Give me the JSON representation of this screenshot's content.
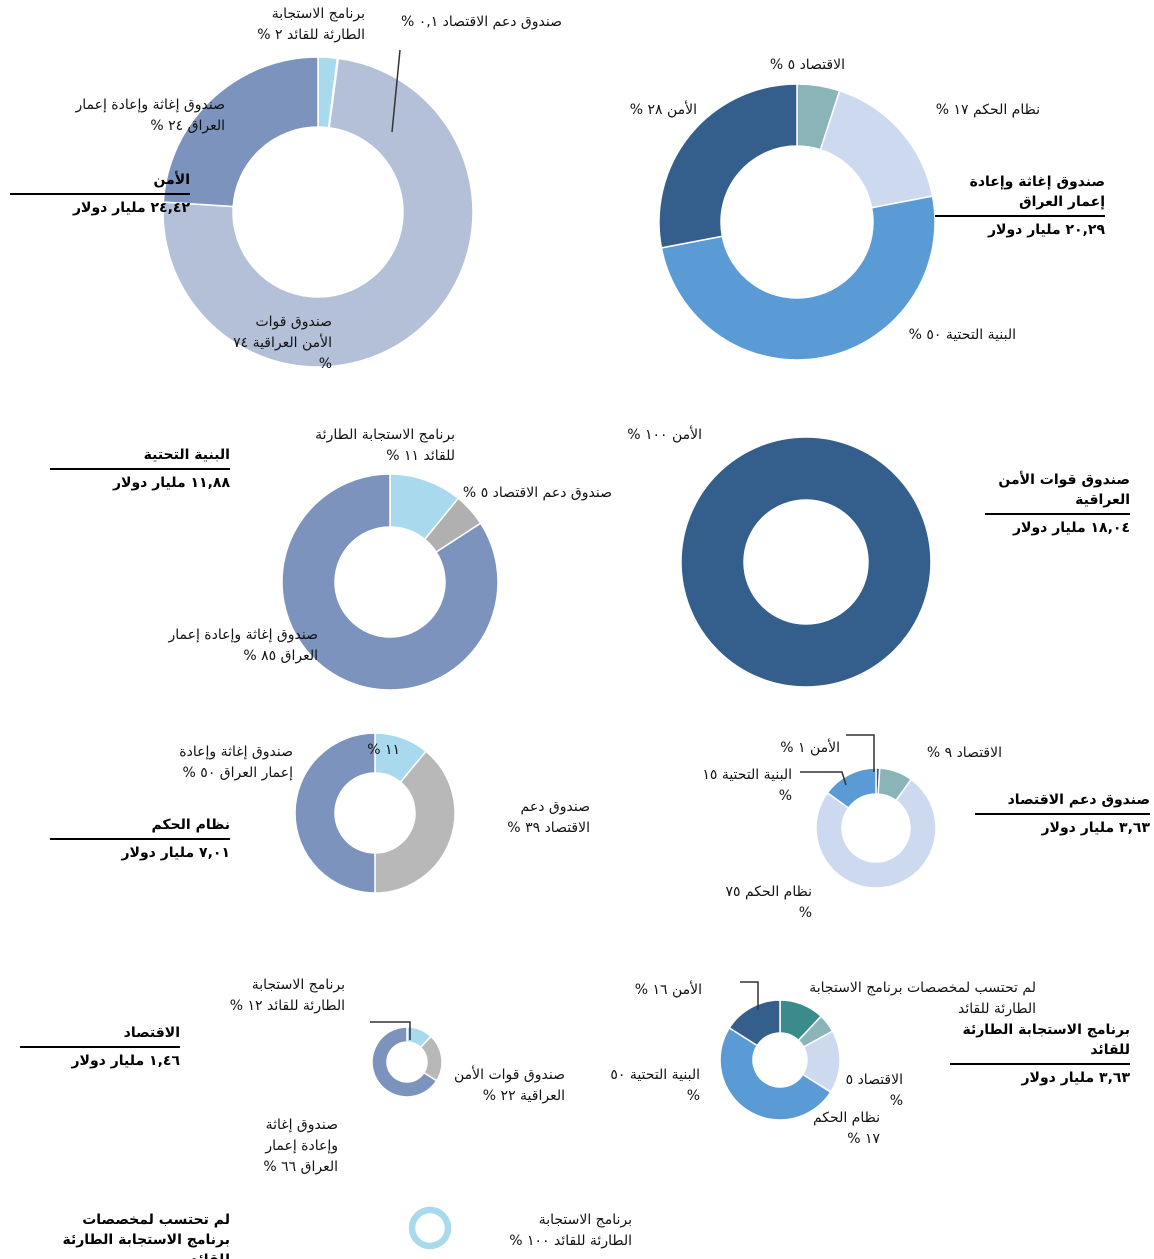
{
  "chart_data": [
    {
      "type": "pie",
      "title": "الأمن",
      "subtitle": "٢٤,٤٢ مليار دولار",
      "labels": [
        "برنامج الاستجابة الطارئة للقائد",
        "صندوق دعم الاقتصاد",
        "صندوق قوات الأمن العراقية",
        "صندوق إغاثة وإعادة إعمار العراق"
      ],
      "values": [
        2,
        0.1,
        74,
        24
      ],
      "value_labels": [
        "٢ %",
        "٠,١ %",
        "٧٤ %",
        "٢٤ %"
      ],
      "colors": [
        "#a9d9ec",
        "#e8eef5",
        "#b4c0d8",
        "#7b93bd"
      ]
    },
    {
      "type": "pie",
      "title": "صندوق إغاثة وإعادة إعمار العراق",
      "subtitle": "٢٠,٢٩ مليار دولار",
      "labels": [
        "الاقتصاد",
        "نظام الحكم",
        "البنية التحتية",
        "الأمن"
      ],
      "values": [
        5,
        17,
        50,
        28
      ],
      "value_labels": [
        "٥ %",
        "١٧ %",
        "٥٠ %",
        "٢٨ %"
      ],
      "colors": [
        "#8ab4b8",
        "#ccd9ee",
        "#5b9bd5",
        "#345e8c"
      ]
    },
    {
      "type": "pie",
      "title": "البنية التحتية",
      "subtitle": "١١,٨٨ مليار دولار",
      "labels": [
        "برنامج الاستجابة الطارئة للقائد",
        "صندوق دعم الاقتصاد",
        "صندوق إغاثة وإعادة إعمار العراق"
      ],
      "values": [
        11,
        5,
        85
      ],
      "value_labels": [
        "١١ %",
        "٥ %",
        "٨٥ %"
      ],
      "colors": [
        "#a9d9ec",
        "#b0b0b0",
        "#7b93bd"
      ]
    },
    {
      "type": "pie",
      "title": "صندوق قوات الأمن العراقية",
      "subtitle": "١٨,٠٤ مليار دولار",
      "labels": [
        "الأمن"
      ],
      "values": [
        100
      ],
      "value_labels": [
        "١٠٠ %"
      ],
      "colors": [
        "#345e8c"
      ]
    },
    {
      "type": "pie",
      "title": "نظام الحكم",
      "subtitle": "٧,٠١ مليار دولار",
      "labels": [
        null,
        "صندوق دعم الاقتصاد",
        "صندوق إغاثة وإعادة إعمار العراق"
      ],
      "values": [
        11,
        39,
        50
      ],
      "value_labels": [
        "١١ %",
        "٣٩ %",
        "٥٠ %"
      ],
      "colors": [
        "#a9d9ec",
        "#b8b8b8",
        "#7b93bd"
      ]
    },
    {
      "type": "pie",
      "title": "صندوق دعم الاقتصاد",
      "subtitle": "٣,٦٣ مليار دولار",
      "labels": [
        "الأمن",
        "الاقتصاد",
        "نظام الحكم",
        "البنية التحتية"
      ],
      "values": [
        1,
        9,
        75,
        15
      ],
      "value_labels": [
        "١ %",
        "٩ %",
        "٧٥ %",
        "١٥ %"
      ],
      "colors": [
        "#345e8c",
        "#8ab4b8",
        "#ccd9ee",
        "#5b9bd5"
      ]
    },
    {
      "type": "pie",
      "title": "الاقتصاد",
      "subtitle": "١,٤٦ مليار دولار",
      "labels": [
        "برنامج الاستجابة الطارئة للقائد",
        "صندوق قوات الأمن العراقية",
        "صندوق إغاثة وإعادة إعمار العراق"
      ],
      "values": [
        12,
        22,
        66
      ],
      "value_labels": [
        "١٢ %",
        "٢٢ %",
        "٦٦ %"
      ],
      "colors": [
        "#a9d9ec",
        "#b8b8b8",
        "#7b93bd"
      ]
    },
    {
      "type": "pie",
      "title": "برنامج الاستجابة الطارئة للقائد",
      "subtitle": "٣,٦٣ مليار دولار",
      "labels": [
        "لم تحتسب لمخصصات برنامج الاستجابة الطارئة للقائد",
        "الاقتصاد",
        "نظام الحكم",
        "البنية التحتية",
        "الأمن"
      ],
      "values": [
        12,
        5,
        17,
        50,
        16
      ],
      "value_labels": [
        null,
        "٥ %",
        "١٧ %",
        "٥٠ %",
        "١٦ %"
      ],
      "colors": [
        "#3a8c8c",
        "#8ab4b8",
        "#ccd9ee",
        "#5b9bd5",
        "#345e8c"
      ]
    },
    {
      "type": "pie",
      "title": "لم تحتسب لمخصصات برنامج الاستجابة الطارئة للقائد",
      "labels": [
        "برنامج الاستجابة الطارئة للقائد"
      ],
      "values": [
        100
      ],
      "value_labels": [
        "١٠٠ %"
      ],
      "colors": [
        "#a9d9ec"
      ]
    }
  ]
}
